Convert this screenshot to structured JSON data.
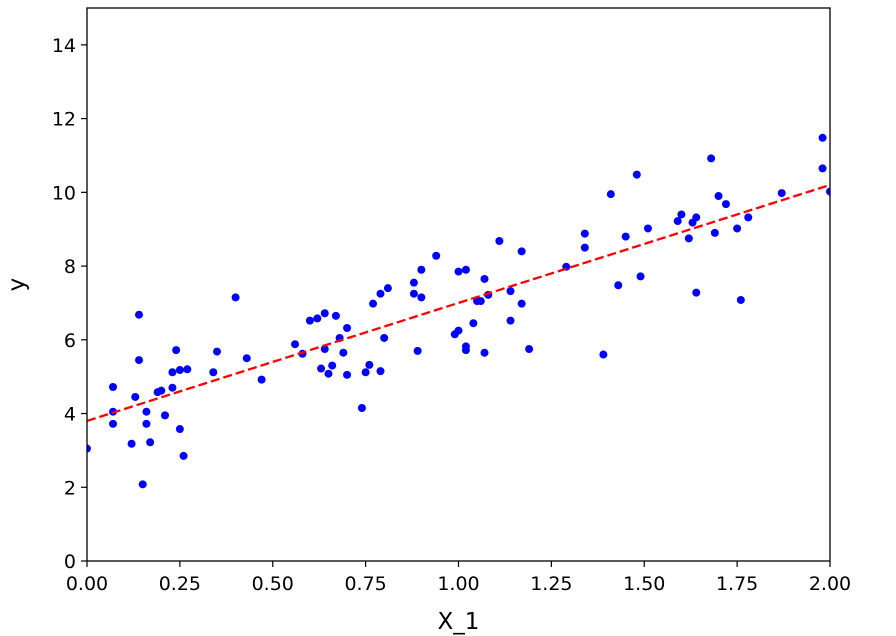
{
  "chart_data": {
    "type": "scatter",
    "title": "",
    "xlabel": "X_1",
    "ylabel": "y",
    "xlim": [
      0,
      2
    ],
    "ylim": [
      0,
      15
    ],
    "grid": false,
    "x_ticks": [
      "0.00",
      "0.25",
      "0.50",
      "0.75",
      "1.00",
      "1.25",
      "1.50",
      "1.75",
      "2.00"
    ],
    "y_ticks": [
      "0",
      "2",
      "4",
      "6",
      "8",
      "10",
      "12",
      "14"
    ],
    "colors": {
      "points": "#0000ff",
      "fit_line": "#ff0000",
      "axes": "#000000"
    },
    "series": [
      {
        "kind": "points",
        "style": "blue dots",
        "points": [
          [
            0.0,
            3.05
          ],
          [
            0.07,
            4.72
          ],
          [
            0.07,
            4.05
          ],
          [
            0.07,
            3.72
          ],
          [
            0.12,
            3.18
          ],
          [
            0.13,
            4.45
          ],
          [
            0.14,
            6.68
          ],
          [
            0.14,
            5.45
          ],
          [
            0.15,
            2.08
          ],
          [
            0.16,
            4.05
          ],
          [
            0.16,
            3.72
          ],
          [
            0.17,
            3.22
          ],
          [
            0.19,
            4.58
          ],
          [
            0.2,
            4.62
          ],
          [
            0.21,
            3.95
          ],
          [
            0.23,
            4.7
          ],
          [
            0.23,
            5.12
          ],
          [
            0.24,
            5.72
          ],
          [
            0.25,
            5.18
          ],
          [
            0.25,
            3.58
          ],
          [
            0.26,
            2.85
          ],
          [
            0.27,
            5.2
          ],
          [
            0.34,
            5.12
          ],
          [
            0.35,
            5.68
          ],
          [
            0.4,
            7.15
          ],
          [
            0.43,
            5.5
          ],
          [
            0.47,
            4.92
          ],
          [
            0.56,
            5.88
          ],
          [
            0.58,
            5.62
          ],
          [
            0.6,
            6.52
          ],
          [
            0.62,
            6.58
          ],
          [
            0.63,
            5.22
          ],
          [
            0.64,
            6.72
          ],
          [
            0.64,
            5.75
          ],
          [
            0.65,
            5.08
          ],
          [
            0.66,
            5.3
          ],
          [
            0.67,
            6.65
          ],
          [
            0.68,
            6.05
          ],
          [
            0.69,
            5.65
          ],
          [
            0.7,
            6.32
          ],
          [
            0.7,
            5.05
          ],
          [
            0.74,
            4.15
          ],
          [
            0.75,
            5.12
          ],
          [
            0.76,
            5.32
          ],
          [
            0.77,
            6.98
          ],
          [
            0.79,
            5.15
          ],
          [
            0.79,
            7.25
          ],
          [
            0.8,
            6.05
          ],
          [
            0.81,
            7.4
          ],
          [
            0.88,
            7.55
          ],
          [
            0.88,
            7.25
          ],
          [
            0.89,
            5.7
          ],
          [
            0.9,
            7.15
          ],
          [
            0.9,
            7.9
          ],
          [
            0.94,
            8.28
          ],
          [
            0.99,
            6.15
          ],
          [
            1.0,
            6.25
          ],
          [
            1.0,
            7.85
          ],
          [
            1.02,
            7.9
          ],
          [
            1.02,
            5.82
          ],
          [
            1.02,
            5.72
          ],
          [
            1.04,
            6.45
          ],
          [
            1.05,
            7.05
          ],
          [
            1.06,
            7.05
          ],
          [
            1.07,
            5.65
          ],
          [
            1.07,
            7.65
          ],
          [
            1.08,
            7.22
          ],
          [
            1.11,
            8.68
          ],
          [
            1.14,
            6.52
          ],
          [
            1.14,
            7.32
          ],
          [
            1.17,
            8.4
          ],
          [
            1.17,
            6.98
          ],
          [
            1.19,
            5.75
          ],
          [
            1.29,
            7.98
          ],
          [
            1.34,
            8.5
          ],
          [
            1.34,
            8.88
          ],
          [
            1.39,
            5.6
          ],
          [
            1.41,
            9.95
          ],
          [
            1.43,
            7.48
          ],
          [
            1.45,
            8.8
          ],
          [
            1.48,
            10.48
          ],
          [
            1.49,
            7.72
          ],
          [
            1.51,
            9.02
          ],
          [
            1.59,
            9.22
          ],
          [
            1.6,
            9.4
          ],
          [
            1.62,
            8.75
          ],
          [
            1.63,
            9.18
          ],
          [
            1.64,
            9.32
          ],
          [
            1.64,
            7.28
          ],
          [
            1.68,
            10.92
          ],
          [
            1.69,
            8.9
          ],
          [
            1.7,
            9.9
          ],
          [
            1.72,
            9.68
          ],
          [
            1.75,
            9.02
          ],
          [
            1.76,
            7.08
          ],
          [
            1.78,
            9.32
          ],
          [
            1.87,
            9.98
          ],
          [
            1.98,
            11.48
          ],
          [
            1.98,
            10.65
          ],
          [
            2.0,
            10.02
          ]
        ]
      },
      {
        "kind": "line",
        "style": "red dashed",
        "x": [
          0,
          2
        ],
        "y": [
          3.8,
          10.2
        ]
      }
    ]
  }
}
